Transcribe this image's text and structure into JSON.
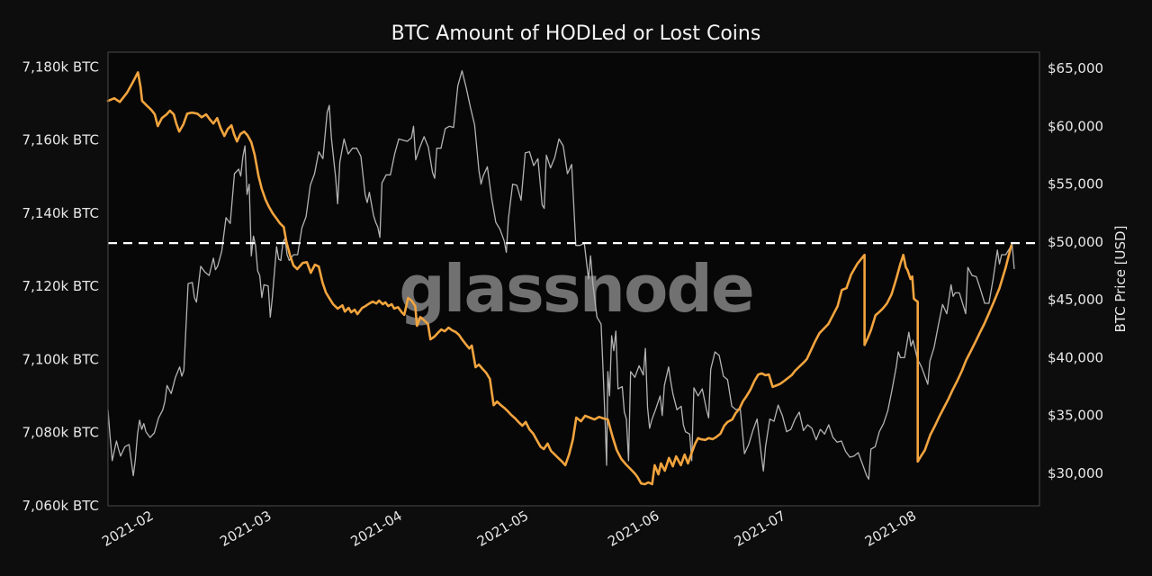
{
  "title": "BTC Amount of HODLed or Lost Coins",
  "watermark": "glassnode",
  "colors": {
    "figure_background": "#0d0d0d",
    "plot_background": "#070707",
    "hodl_line": "#f2a43e",
    "price_line": "#b3b3b3",
    "dashed_line": "#ffffff",
    "plot_border": "#4a4a4a",
    "tick_text": "#e8e8e8",
    "title_text": "#f5f5f5",
    "watermark_text": "#717171"
  },
  "chart_data": {
    "type": "line",
    "title": "BTC Amount of HODLed or Lost Coins",
    "x_unit": "days since 2021-01-21",
    "xlim": [
      0,
      221
    ],
    "grid": false,
    "legend": "none",
    "x_ticks": [
      {
        "t": 11,
        "label": "2021-02"
      },
      {
        "t": 39,
        "label": "2021-03"
      },
      {
        "t": 70,
        "label": "2021-04"
      },
      {
        "t": 100,
        "label": "2021-05"
      },
      {
        "t": 131,
        "label": "2021-06"
      },
      {
        "t": 161,
        "label": "2021-07"
      },
      {
        "t": 192,
        "label": "2021-08"
      }
    ],
    "left_axis": {
      "ylim": [
        7060,
        7184
      ],
      "ticks": [
        {
          "v": 7180,
          "label": "7,180k BTC"
        },
        {
          "v": 7160,
          "label": "7,160k BTC"
        },
        {
          "v": 7140,
          "label": "7,140k BTC"
        },
        {
          "v": 7120,
          "label": "7,120k BTC"
        },
        {
          "v": 7100,
          "label": "7,100k BTC"
        },
        {
          "v": 7080,
          "label": "7,080k BTC"
        },
        {
          "v": 7060,
          "label": "7,060k BTC"
        }
      ]
    },
    "right_axis": {
      "label": "BTC Price [USD]",
      "ylim": [
        27200,
        66400
      ],
      "ticks": [
        {
          "v": 65000,
          "label": "$65,000"
        },
        {
          "v": 60000,
          "label": "$60,000"
        },
        {
          "v": 55000,
          "label": "$55,000"
        },
        {
          "v": 50000,
          "label": "$50,000"
        },
        {
          "v": 45000,
          "label": "$45,000"
        },
        {
          "v": 40000,
          "label": "$40,000"
        },
        {
          "v": 35000,
          "label": "$35,000"
        },
        {
          "v": 30000,
          "label": "$30,000"
        }
      ]
    },
    "dashed_line": {
      "axis": "right",
      "value": 49900
    },
    "series": [
      {
        "name": "HODLed or Lost Coins [k BTC]",
        "axis": "left",
        "color_key": "hodl_line",
        "width": 2.6,
        "t": [
          0,
          1.5,
          2.8,
          4.5,
          5.8,
          7.1,
          7.7,
          8.1,
          9.2,
          10.3,
          11.1,
          11.8,
          12.8,
          13.9,
          14.7,
          15.6,
          16.2,
          16.9,
          17.9,
          18.8,
          19.9,
          21.2,
          22.2,
          23.3,
          24.1,
          25,
          25.9,
          26.7,
          27.6,
          28.4,
          29.3,
          29.9,
          30.6,
          31.4,
          32.3,
          33.1,
          34,
          34.8,
          35.7,
          36.5,
          37.4,
          38.2,
          39.1,
          40,
          40.8,
          41.7,
          42.3,
          43.2,
          44,
          44.9,
          46.2,
          47.2,
          48.1,
          49.1,
          50,
          50.9,
          51.7,
          52.6,
          53.4,
          54.5,
          55.6,
          56.2,
          57.1,
          57.7,
          58.5,
          59.2,
          60.3,
          61.1,
          62,
          62.8,
          63.7,
          64.3,
          65.2,
          65.8,
          66.5,
          67.3,
          67.9,
          68.8,
          69.7,
          70.3,
          71.2,
          72,
          72.9,
          73.3,
          74.1,
          75,
          75.9,
          76.5,
          77.4,
          78.2,
          79.1,
          79.9,
          80.8,
          81.6,
          82.5,
          83.3,
          84,
          84.8,
          85.7,
          86.3,
          87.2,
          88,
          88.9,
          89.7,
          90.6,
          91.5,
          92.3,
          93.2,
          94,
          94.9,
          95.7,
          96.6,
          97.4,
          98.3,
          99.1,
          100,
          100.9,
          101.7,
          102.6,
          103.4,
          104.3,
          105.1,
          106,
          106.8,
          107.7,
          108.5,
          109.4,
          110.3,
          111.1,
          112.2,
          113.2,
          114.3,
          115.4,
          116.5,
          117.5,
          118.6,
          119.7,
          120.7,
          121.8,
          122.9,
          123.9,
          125,
          125.6,
          126.5,
          127.4,
          128.2,
          129.1,
          129.7,
          130.6,
          131.2,
          132.1,
          133.1,
          134,
          134.8,
          135.9,
          136.8,
          137.6,
          138.5,
          139.3,
          140,
          140.6,
          141.7,
          142.5,
          143.4,
          144.2,
          145.3,
          146.2,
          147,
          148.1,
          148.9,
          149.8,
          150.6,
          151.5,
          152.4,
          153.4,
          154.3,
          155.1,
          156,
          156.8,
          157.7,
          158.8,
          159.6,
          160.5,
          161.3,
          162.2,
          163,
          164.1,
          165,
          165.8,
          166.7,
          167.7,
          168.8,
          169.9,
          170.9,
          172,
          173.1,
          174.1,
          175.2,
          176.3,
          177.8,
          179.5,
          179.5,
          180.3,
          181,
          182.1,
          182.9,
          183.8,
          184.8,
          185.9,
          187,
          188,
          188.7,
          189.3,
          189.7,
          190.4,
          190.8,
          191.2,
          191.7,
          192.1,
          192.1,
          193,
          193.8,
          195.1,
          196.2,
          197.2,
          198.3,
          199.4,
          200.4,
          201.5,
          202.6,
          203.6,
          204.7,
          205.8,
          206.8,
          207.9,
          209,
          210,
          211.5,
          213,
          214.3
        ],
        "v": [
          7170.7,
          7171.4,
          7170.4,
          7172.9,
          7175.6,
          7178.5,
          7174.6,
          7170.7,
          7169.4,
          7168.2,
          7167,
          7163.8,
          7166,
          7167,
          7168,
          7167,
          7164.5,
          7162.3,
          7164.3,
          7167.2,
          7167.5,
          7167.2,
          7166.2,
          7167,
          7165.7,
          7164.5,
          7166,
          7163.3,
          7161.1,
          7163,
          7164,
          7161.6,
          7159.6,
          7161.6,
          7162.3,
          7161.3,
          7159.4,
          7155.9,
          7150.2,
          7146.6,
          7143.6,
          7141.7,
          7139.9,
          7138.5,
          7137.2,
          7136.2,
          7132.3,
          7128.4,
          7125.7,
          7124.7,
          7126.4,
          7126.6,
          7123.7,
          7125.9,
          7125.4,
          7121,
          7118.3,
          7116.6,
          7115.1,
          7113.9,
          7114.8,
          7113.1,
          7114.1,
          7112.9,
          7113.6,
          7112.4,
          7114.1,
          7114.6,
          7115.3,
          7115.8,
          7115.3,
          7116.1,
          7115.1,
          7115.6,
          7114.6,
          7115.1,
          7113.9,
          7114.3,
          7112.9,
          7112.2,
          7116.8,
          7116.1,
          7114.6,
          7109.2,
          7111.6,
          7110.7,
          7109.7,
          7105.5,
          7106.2,
          7107.2,
          7108.2,
          7107.7,
          7108.7,
          7108,
          7107.5,
          7106.7,
          7105.5,
          7104.3,
          7103,
          7103.8,
          7097.9,
          7098.6,
          7097.4,
          7096.4,
          7094.7,
          7087.5,
          7088.5,
          7087.5,
          7086.8,
          7085.8,
          7084.8,
          7083.9,
          7082.9,
          7081.9,
          7082.9,
          7080.9,
          7079.7,
          7078,
          7076.2,
          7075.5,
          7077,
          7075,
          7074,
          7073.1,
          7072.1,
          7071.1,
          7074,
          7078.2,
          7084.1,
          7083.1,
          7084.6,
          7084.1,
          7083.6,
          7084.3,
          7083.9,
          7083.6,
          7078.9,
          7075.2,
          7072.8,
          7071.3,
          7070.1,
          7068.8,
          7067.9,
          7066.1,
          7065.9,
          7066.4,
          7065.9,
          7071.1,
          7068.6,
          7071.6,
          7069.6,
          7073.1,
          7070.8,
          7073.5,
          7071.1,
          7074,
          7071.6,
          7074.5,
          7077,
          7078.5,
          7078.2,
          7078,
          7078.5,
          7078.2,
          7078.7,
          7079.7,
          7081.9,
          7082.9,
          7083.6,
          7085.3,
          7086.5,
          7088.5,
          7090,
          7091.7,
          7094.2,
          7095.9,
          7096.2,
          7095.7,
          7095.9,
          7092.5,
          7093,
          7093.4,
          7094.2,
          7094.9,
          7095.7,
          7096.9,
          7098.1,
          7099.1,
          7100.1,
          7102.3,
          7104.8,
          7107.2,
          7108.5,
          7109.7,
          7112.1,
          7114.6,
          7119,
          7119.5,
          7123.2,
          7126.2,
          7128.6,
          7104,
          7106,
          7108,
          7112.1,
          7112.9,
          7113.9,
          7115.3,
          7117.8,
          7122,
          7126.2,
          7128.6,
          7125.2,
          7124.4,
          7122,
          7122.7,
          7116.6,
          7116.1,
          7115.8,
          7072.1,
          7073.8,
          7075.2,
          7079.4,
          7081.9,
          7084.3,
          7086.8,
          7089.2,
          7091.7,
          7094.2,
          7096.9,
          7099.8,
          7102.3,
          7104.8,
          7107.2,
          7109.7,
          7112.6,
          7115.3,
          7119.5,
          7125.2,
          7131.1
        ]
      },
      {
        "name": "BTC Price [USD]",
        "axis": "right",
        "color_key": "price_line",
        "width": 1.3,
        "t": [
          0,
          0.5,
          1,
          2,
          2.5,
          3,
          4,
          5,
          6,
          6.5,
          7,
          7.5,
          8,
          8.5,
          9,
          10,
          11,
          12,
          13,
          13.5,
          14,
          15,
          16,
          17,
          17.5,
          18,
          19,
          20,
          20.5,
          21,
          22,
          23,
          24,
          25,
          25.5,
          26,
          27,
          28,
          29,
          30,
          31,
          31.5,
          32,
          32.5,
          33,
          33.5,
          34,
          34.5,
          35,
          35.5,
          36,
          36.5,
          37,
          38,
          38.5,
          39,
          40,
          40.5,
          41,
          41.5,
          42,
          42.5,
          43,
          44,
          45,
          46,
          47,
          48,
          49,
          50,
          51,
          52,
          52.5,
          53,
          54,
          54.5,
          55,
          56,
          57,
          58,
          59,
          60,
          61,
          61.5,
          62,
          63,
          63.5,
          64,
          64.5,
          65,
          66,
          67,
          68,
          69,
          70,
          71,
          72,
          72.5,
          73,
          74,
          75,
          76,
          77,
          77.5,
          78,
          79,
          80,
          81,
          82,
          83,
          84,
          85,
          86,
          87,
          88,
          88.5,
          89,
          90,
          91,
          92,
          93,
          94,
          94.5,
          95,
          96,
          97,
          98,
          99,
          100,
          101,
          102,
          103,
          103.5,
          104,
          105,
          106,
          107,
          108,
          109,
          110,
          111,
          112,
          113,
          114,
          114.5,
          115,
          116,
          117,
          117.5,
          118,
          118.3,
          118.6,
          119,
          119.5,
          120,
          120.5,
          121,
          122,
          122.5,
          123,
          123.5,
          124,
          125,
          126,
          127,
          127.5,
          128,
          128.5,
          129,
          130,
          131,
          131.5,
          132,
          133,
          133.5,
          134,
          135,
          136,
          136.5,
          137,
          138,
          138.5,
          139,
          140,
          141,
          142,
          142.5,
          143,
          144,
          145,
          146,
          147,
          148,
          149,
          150,
          151,
          152,
          153,
          154,
          155,
          155.5,
          156,
          157,
          158,
          159,
          160,
          161,
          162,
          163,
          164,
          165,
          166,
          167,
          168,
          169,
          170,
          171,
          172,
          173,
          174,
          175,
          176,
          177,
          178,
          179,
          180,
          180.5,
          181,
          182,
          183,
          184,
          185,
          186,
          187,
          187.5,
          188,
          189,
          190,
          190.5,
          191,
          192,
          193,
          194,
          194.5,
          195,
          196,
          197,
          198,
          199,
          200,
          200.5,
          201,
          202,
          203,
          203.5,
          204,
          205,
          206,
          207,
          208,
          209,
          210,
          211,
          211.5,
          212,
          213,
          214,
          214.5,
          215
        ],
        "v": [
          35500,
          33200,
          31100,
          32800,
          32100,
          31500,
          32300,
          32500,
          29800,
          31200,
          33400,
          34600,
          33800,
          34300,
          33600,
          33100,
          33500,
          34800,
          35500,
          36200,
          37600,
          36900,
          38300,
          39200,
          38400,
          38900,
          46400,
          46500,
          45200,
          44800,
          47900,
          47400,
          47100,
          48600,
          47600,
          47900,
          49200,
          52100,
          51600,
          55900,
          56300,
          55700,
          57400,
          58300,
          54100,
          55000,
          48800,
          50500,
          49700,
          47500,
          47100,
          45200,
          46300,
          46200,
          43500,
          45200,
          49600,
          48500,
          48400,
          50000,
          50300,
          48900,
          48400,
          48900,
          48900,
          51200,
          52200,
          54900,
          55900,
          57800,
          57200,
          61200,
          61800,
          59000,
          55600,
          53300,
          56900,
          58900,
          57600,
          58100,
          58100,
          57400,
          54100,
          53400,
          54300,
          52300,
          51700,
          51300,
          50400,
          55100,
          55800,
          55800,
          57600,
          58900,
          58800,
          58700,
          59000,
          60000,
          57100,
          58200,
          59100,
          58200,
          56000,
          55500,
          58100,
          58100,
          59800,
          60000,
          59900,
          63500,
          64800,
          63300,
          61600,
          60100,
          56200,
          55000,
          55700,
          56500,
          53800,
          51700,
          51100,
          50100,
          49100,
          52000,
          55000,
          54900,
          53600,
          57700,
          57800,
          56600,
          57200,
          53200,
          52900,
          57500,
          56400,
          57300,
          58900,
          58300,
          55900,
          56700,
          49700,
          49700,
          49900,
          46800,
          48800,
          46500,
          43500,
          42900,
          38500,
          34000,
          30700,
          38800,
          36700,
          41900,
          40600,
          42300,
          37300,
          37500,
          35300,
          34700,
          31100,
          38800,
          38300,
          39300,
          38500,
          40800,
          35700,
          33900,
          34600,
          35600,
          36700,
          35000,
          37600,
          39200,
          38000,
          36900,
          35500,
          35800,
          34200,
          33600,
          33400,
          31100,
          37400,
          36700,
          37300,
          35500,
          34800,
          39000,
          40500,
          40200,
          38400,
          38100,
          35800,
          35500,
          35600,
          31700,
          32500,
          33700,
          34700,
          31600,
          30200,
          32300,
          34700,
          34500,
          35900,
          35000,
          33600,
          33800,
          34700,
          35300,
          33700,
          34200,
          33900,
          32900,
          33800,
          33400,
          34200,
          33100,
          32700,
          32800,
          31900,
          31400,
          31500,
          31800,
          30800,
          29800,
          29500,
          32100,
          32300,
          33600,
          34300,
          35400,
          37200,
          39200,
          40500,
          40000,
          40000,
          42200,
          41000,
          41500,
          39900,
          39200,
          38200,
          37700,
          39700,
          40900,
          42800,
          44600,
          43800,
          46300,
          45300,
          45600,
          45600,
          44400,
          43800,
          47800,
          47100,
          47000,
          45900,
          44700,
          44700,
          46800,
          49300,
          48100,
          48900,
          48900,
          49500,
          49800,
          47700
        ]
      }
    ]
  }
}
